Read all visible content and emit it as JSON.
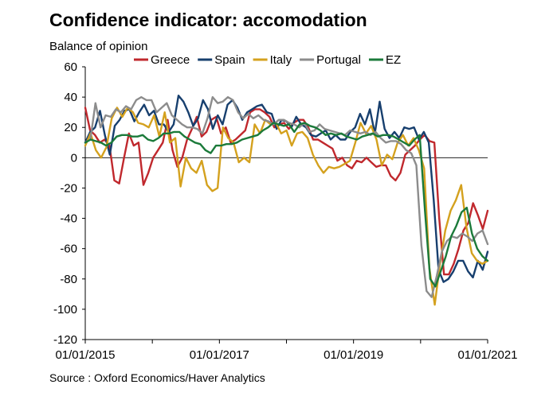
{
  "chart_data": {
    "type": "line",
    "title": "Confidence indicator: accomodation",
    "ylabel": "Balance of opinion",
    "xlabel": "",
    "source": "Source : Oxford Economics/Haver Analytics",
    "ylim": [
      -120,
      60
    ],
    "yticks": [
      60,
      40,
      20,
      0,
      -20,
      -40,
      -60,
      -80,
      -100,
      -120
    ],
    "x_start": "2015-01",
    "x_end": "2021-01",
    "xtick_labels": [
      "01/01/2015",
      "01/01/2017",
      "01/01/2019",
      "01/01/2021"
    ],
    "legend_position": "top",
    "series": [
      {
        "name": "Greece",
        "color": "#c0282d",
        "values": [
          33,
          18,
          15,
          10,
          12,
          8,
          -15,
          -17,
          0,
          16,
          8,
          10,
          -18,
          -10,
          0,
          5,
          10,
          25,
          5,
          -6,
          0,
          12,
          19,
          27,
          14,
          17,
          25,
          27,
          16,
          20,
          10,
          12,
          15,
          18,
          30,
          32,
          32,
          30,
          27,
          20,
          22,
          23,
          19,
          23,
          25,
          25,
          20,
          12,
          12,
          10,
          8,
          6,
          -2,
          0,
          -5,
          -7,
          -2,
          -3,
          0,
          -3,
          -6,
          -5,
          -5,
          -12,
          -15,
          -10,
          2,
          5,
          8,
          12,
          15,
          11,
          10,
          -40,
          -77,
          -77,
          -70,
          -60,
          -48,
          -43,
          -30,
          -38,
          -47,
          -35
        ]
      },
      {
        "name": "Spain",
        "color": "#173f6e",
        "values": [
          10,
          17,
          20,
          31,
          15,
          2,
          21,
          25,
          31,
          32,
          24,
          30,
          35,
          28,
          31,
          22,
          22,
          17,
          22,
          41,
          37,
          30,
          21,
          26,
          38,
          32,
          19,
          28,
          22,
          35,
          38,
          33,
          25,
          30,
          32,
          34,
          35,
          30,
          29,
          19,
          25,
          24,
          20,
          27,
          22,
          20,
          15,
          14,
          16,
          18,
          12,
          15,
          12,
          12,
          17,
          20,
          29,
          22,
          32,
          16,
          37,
          19,
          13,
          17,
          13,
          20,
          19,
          20,
          12,
          17,
          10,
          -28,
          -74,
          -82,
          -80,
          -75,
          -68,
          -68,
          -75,
          -79,
          -68,
          -74,
          -62
        ]
      },
      {
        "name": "Italy",
        "color": "#d4a11e",
        "values": [
          8,
          16,
          5,
          0,
          7,
          26,
          33,
          27,
          33,
          30,
          23,
          22,
          20,
          28,
          14,
          30,
          10,
          13,
          -19,
          0,
          -7,
          -10,
          -2,
          -18,
          -22,
          -20,
          20,
          13,
          10,
          -3,
          0,
          -3,
          22,
          16,
          25,
          22,
          23,
          16,
          18,
          8,
          16,
          17,
          13,
          2,
          -5,
          -10,
          -6,
          -7,
          -6,
          -4,
          -2,
          10,
          23,
          16,
          21,
          12,
          -5,
          2,
          -1,
          10,
          15,
          8,
          13,
          5,
          -7,
          -73,
          -97,
          -70,
          -48,
          -35,
          -28,
          -18,
          -46,
          -63,
          -68,
          -70,
          -68
        ]
      },
      {
        "name": "Portugal",
        "color": "#8c8c8c",
        "values": [
          10,
          12,
          36,
          20,
          28,
          27,
          32,
          30,
          34,
          32,
          38,
          40,
          38,
          38,
          30,
          33,
          36,
          28,
          25,
          22,
          20,
          20,
          19,
          16,
          26,
          40,
          36,
          37,
          40,
          38,
          30,
          26,
          29,
          26,
          28,
          25,
          24,
          22,
          25,
          25,
          23,
          22,
          20,
          23,
          17,
          18,
          22,
          19,
          18,
          17,
          16,
          15,
          18,
          17,
          16,
          17,
          15,
          17,
          13,
          10,
          11,
          11,
          9,
          5,
          3,
          -5,
          -58,
          -88,
          -92,
          -78,
          -62,
          -55,
          -52,
          -53,
          -50,
          -52,
          -55,
          -50,
          -48,
          -57
        ]
      },
      {
        "name": "EZ",
        "color": "#1b7a3a",
        "values": [
          10,
          12,
          11,
          10,
          8,
          10,
          14,
          15,
          15,
          14,
          14,
          15,
          12,
          11,
          13,
          16,
          16,
          17,
          17,
          14,
          12,
          10,
          9,
          5,
          3,
          8,
          8,
          9,
          9,
          10,
          12,
          13,
          14,
          15,
          18,
          20,
          23,
          22,
          21,
          22,
          17,
          22,
          23,
          21,
          20,
          18,
          15,
          16,
          15,
          16,
          14,
          13,
          12,
          14,
          15,
          16,
          14,
          15,
          15,
          14,
          12,
          10,
          8,
          12,
          15,
          -35,
          -80,
          -85,
          -75,
          -65,
          -52,
          -45,
          -36,
          -33,
          -50,
          -60,
          -65,
          -68
        ]
      }
    ]
  }
}
